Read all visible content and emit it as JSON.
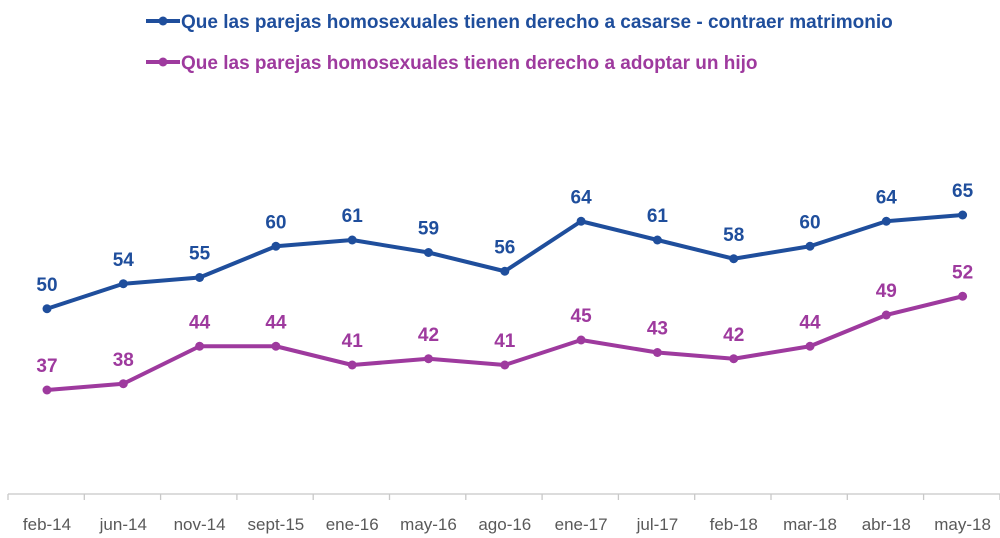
{
  "chart_data": {
    "type": "line",
    "title": "",
    "xlabel": "",
    "ylabel": "",
    "categories": [
      "feb-14",
      "jun-14",
      "nov-14",
      "sept-15",
      "ene-16",
      "may-16",
      "ago-16",
      "ene-17",
      "jul-17",
      "feb-18",
      "mar-18",
      "abr-18",
      "may-18"
    ],
    "ylim": [
      0,
      75
    ],
    "grid": false,
    "legend_position": "top-left",
    "series": [
      {
        "name": "Que las parejas homosexuales tienen derecho a casarse - contraer matrimonio",
        "color": "#1f4e9c",
        "values": [
          50,
          54,
          55,
          60,
          61,
          59,
          56,
          64,
          61,
          58,
          60,
          64,
          65
        ]
      },
      {
        "name": "Que las parejas homosexuales tienen derecho a adoptar un hijo",
        "color": "#9e3a9e",
        "values": [
          37,
          38,
          44,
          44,
          41,
          42,
          41,
          45,
          43,
          42,
          44,
          49,
          52
        ]
      }
    ]
  }
}
